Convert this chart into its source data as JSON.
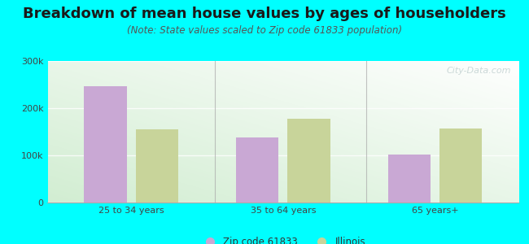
{
  "title": "Breakdown of mean house values by ages of householders",
  "subtitle": "(Note: State values scaled to Zip code 61833 population)",
  "categories": [
    "25 to 34 years",
    "35 to 64 years",
    "65 years+"
  ],
  "zip_values": [
    247000,
    138000,
    102000
  ],
  "illinois_values": [
    155000,
    178000,
    157000
  ],
  "bar_color_zip": "#c9a8d4",
  "bar_color_illinois": "#c8d49a",
  "background_color": "#00ffff",
  "ylim": [
    0,
    300000
  ],
  "yticks": [
    0,
    100000,
    200000,
    300000
  ],
  "ytick_labels": [
    "0",
    "100k",
    "200k",
    "300k"
  ],
  "legend_label_zip": "Zip code 61833",
  "legend_label_illinois": "Illinois",
  "title_fontsize": 13,
  "subtitle_fontsize": 8.5,
  "watermark": "City-Data.com"
}
